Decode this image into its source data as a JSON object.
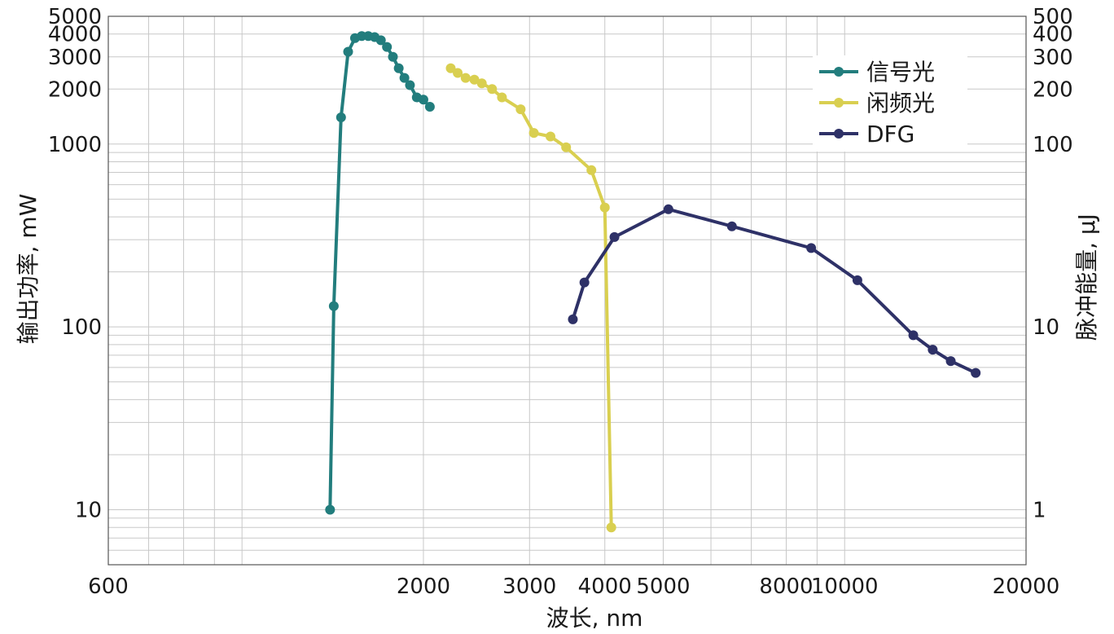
{
  "chart_data": {
    "type": "line",
    "xlabel": "波长, nm",
    "ylabel": "输出功率, mW",
    "y2label": "脉冲能量, μJ",
    "xscale": "log",
    "yscale": "log",
    "xlim": [
      600,
      20000
    ],
    "ylim": [
      5,
      5000
    ],
    "y2lim": [
      0.5,
      500
    ],
    "grid": true,
    "legend_position": "top-right",
    "x_tick_labels": [
      "600",
      "2000",
      "3000",
      "4000",
      "5000",
      "8000",
      "10000",
      "20000"
    ],
    "x_tick_values": [
      600,
      2000,
      3000,
      4000,
      5000,
      8000,
      10000,
      20000
    ],
    "y_tick_labels": [
      "10",
      "100",
      "1000",
      "2000",
      "3000",
      "4000",
      "5000"
    ],
    "y_tick_values": [
      10,
      100,
      1000,
      2000,
      3000,
      4000,
      5000
    ],
    "y2_tick_labels": [
      "1",
      "10",
      "100",
      "200",
      "300",
      "400",
      "500"
    ],
    "y2_tick_values": [
      1,
      10,
      100,
      200,
      300,
      400,
      500
    ],
    "series": [
      {
        "name": "信号光",
        "color": "#227d7d",
        "x": [
          1400,
          1420,
          1460,
          1500,
          1540,
          1580,
          1620,
          1660,
          1700,
          1740,
          1780,
          1820,
          1860,
          1900,
          1950,
          2000,
          2050
        ],
        "y": [
          10,
          130,
          1400,
          3200,
          3800,
          3900,
          3900,
          3850,
          3700,
          3400,
          3000,
          2600,
          2300,
          2100,
          1800,
          1750,
          1600
        ]
      },
      {
        "name": "闲频光",
        "color": "#d9cf50",
        "x": [
          2220,
          2280,
          2350,
          2430,
          2500,
          2600,
          2700,
          2900,
          3050,
          3250,
          3450,
          3800,
          4000,
          4100
        ],
        "y": [
          2600,
          2450,
          2300,
          2250,
          2150,
          2000,
          1800,
          1550,
          1150,
          1100,
          960,
          720,
          450,
          8
        ]
      },
      {
        "name": "DFG",
        "color": "#2e3167",
        "x": [
          3540,
          3700,
          4150,
          5100,
          6500,
          8800,
          10500,
          13000,
          14000,
          15000,
          16500
        ],
        "y": [
          110,
          175,
          310,
          440,
          355,
          270,
          180,
          90,
          75,
          65,
          56
        ]
      }
    ]
  }
}
